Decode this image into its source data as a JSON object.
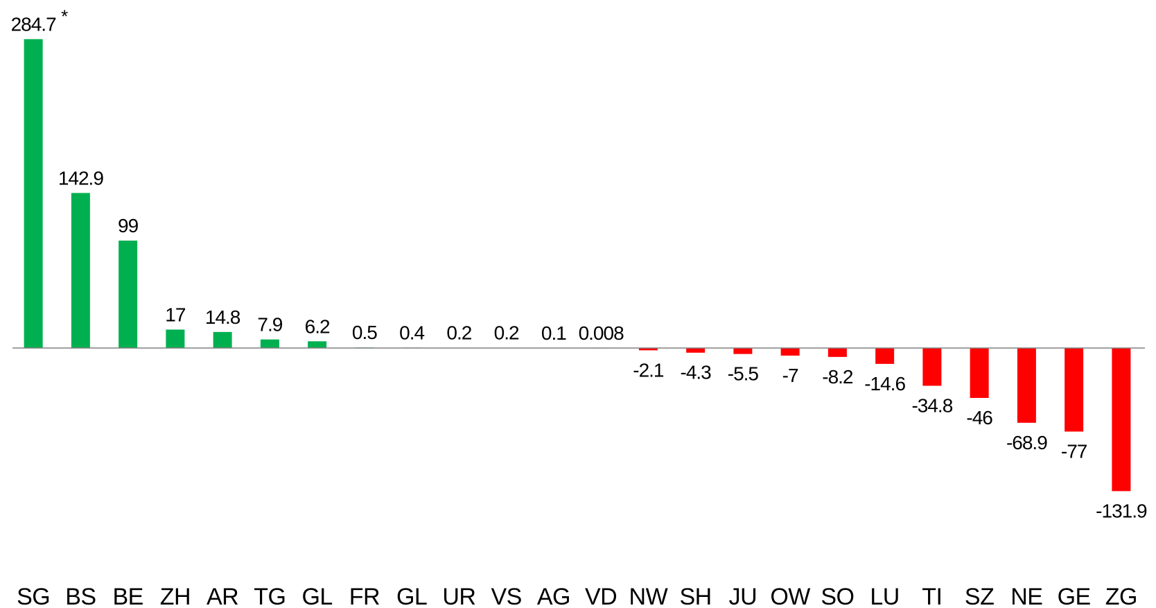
{
  "chart_data": {
    "type": "bar",
    "title": "",
    "xlabel": "",
    "ylabel": "",
    "categories": [
      "SG",
      "BS",
      "BE",
      "ZH",
      "AR",
      "TG",
      "GL",
      "FR",
      "GL",
      "UR",
      "VS",
      "AG",
      "VD",
      "NW",
      "SH",
      "JU",
      "OW",
      "SO",
      "LU",
      "TI",
      "SZ",
      "NE",
      "GE",
      "ZG"
    ],
    "values": [
      284.7,
      142.9,
      99,
      17,
      14.8,
      7.9,
      6.2,
      0.5,
      0.4,
      0.2,
      0.2,
      0.1,
      0.008,
      -2.1,
      -4.3,
      -5.5,
      -7,
      -8.2,
      -14.6,
      -34.8,
      -46,
      -68.9,
      -77,
      -131.9
    ],
    "value_labels": [
      "284.7",
      "142.9",
      "99",
      "17",
      "14.8",
      "7.9",
      "6.2",
      "0.5",
      "0.4",
      "0.2",
      "0.2",
      "0.1",
      "0.008",
      "-2.1",
      "-4.3",
      "-5.5",
      "-7",
      "-8.2",
      "-14.6",
      "-34.8",
      "-46",
      "-68.9",
      "-77",
      "-131.9"
    ],
    "annotations": [
      {
        "category_index": 0,
        "text": "*"
      }
    ],
    "ylim": [
      -140,
      290
    ],
    "grid": false,
    "legend": "none",
    "colors": {
      "positive": "#00b050",
      "negative": "#ff0000",
      "axis": "#808080"
    }
  }
}
